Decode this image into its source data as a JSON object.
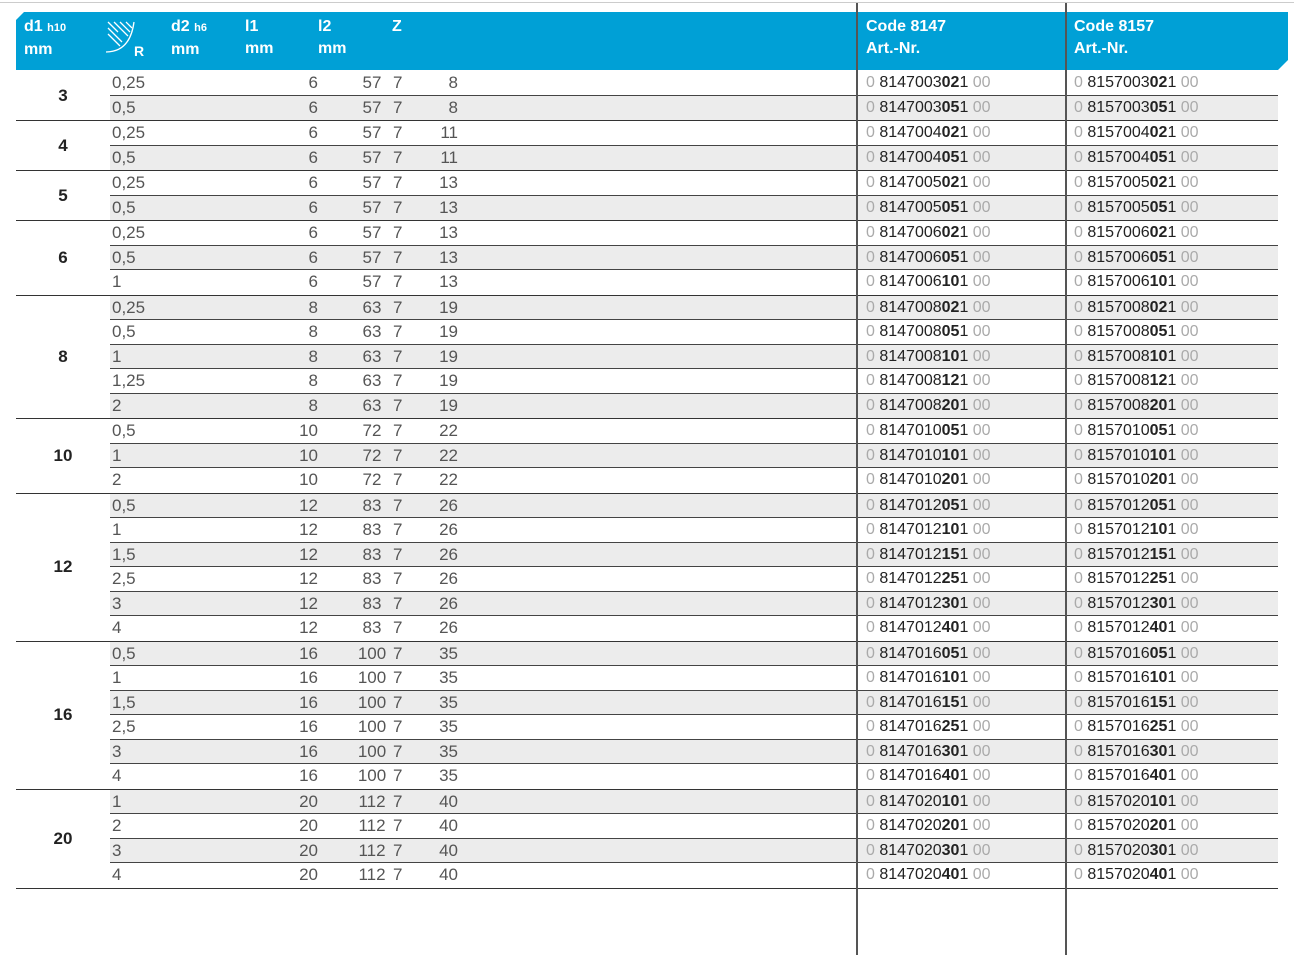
{
  "header": {
    "d1": "d1",
    "d1_tol": "h10",
    "d1_unit": "mm",
    "r": "R",
    "d2": "d2",
    "d2_tol": "h6",
    "d2_unit": "mm",
    "l1": "l1",
    "l1_unit": "mm",
    "l2": "l2",
    "l2_unit": "mm",
    "z": "Z",
    "code1": "Code 8147",
    "code1_sub": "Art.-Nr.",
    "code2": "Code 8157",
    "code2_sub": "Art.-Nr."
  },
  "colors": {
    "header_bg": "#00a0d6",
    "stripe": "#ececec"
  },
  "groups": [
    {
      "d1": "3",
      "rows": [
        [
          "0,25",
          "6",
          "57",
          "8",
          "7",
          "0814700302100",
          "0815700302100"
        ],
        [
          "0,5",
          "6",
          "57",
          "8",
          "7",
          "0814700305100",
          "0815700305100"
        ]
      ]
    },
    {
      "d1": "4",
      "rows": [
        [
          "0,25",
          "6",
          "57",
          "11",
          "7",
          "0814700402100",
          "0815700402100"
        ],
        [
          "0,5",
          "6",
          "57",
          "11",
          "7",
          "0814700405100",
          "0815700405100"
        ]
      ]
    },
    {
      "d1": "5",
      "rows": [
        [
          "0,25",
          "6",
          "57",
          "13",
          "7",
          "0814700502100",
          "0815700502100"
        ],
        [
          "0,5",
          "6",
          "57",
          "13",
          "7",
          "0814700505100",
          "0815700505100"
        ]
      ]
    },
    {
      "d1": "6",
      "rows": [
        [
          "0,25",
          "6",
          "57",
          "13",
          "7",
          "0814700602100",
          "0815700602100"
        ],
        [
          "0,5",
          "6",
          "57",
          "13",
          "7",
          "0814700605100",
          "0815700605100"
        ],
        [
          "1",
          "6",
          "57",
          "13",
          "7",
          "0814700610100",
          "0815700610100"
        ]
      ]
    },
    {
      "d1": "8",
      "rows": [
        [
          "0,25",
          "8",
          "63",
          "19",
          "7",
          "0814700802100",
          "0815700802100"
        ],
        [
          "0,5",
          "8",
          "63",
          "19",
          "7",
          "0814700805100",
          "0815700805100"
        ],
        [
          "1",
          "8",
          "63",
          "19",
          "7",
          "0814700810100",
          "0815700810100"
        ],
        [
          "1,25",
          "8",
          "63",
          "19",
          "7",
          "0814700812100",
          "0815700812100"
        ],
        [
          "2",
          "8",
          "63",
          "19",
          "7",
          "0814700820100",
          "0815700820100"
        ]
      ]
    },
    {
      "d1": "10",
      "rows": [
        [
          "0,5",
          "10",
          "72",
          "22",
          "7",
          "0814701005100",
          "0815701005100"
        ],
        [
          "1",
          "10",
          "72",
          "22",
          "7",
          "0814701010100",
          "0815701010100"
        ],
        [
          "2",
          "10",
          "72",
          "22",
          "7",
          "0814701020100",
          "0815701020100"
        ]
      ]
    },
    {
      "d1": "12",
      "rows": [
        [
          "0,5",
          "12",
          "83",
          "26",
          "7",
          "0814701205100",
          "0815701205100"
        ],
        [
          "1",
          "12",
          "83",
          "26",
          "7",
          "0814701210100",
          "0815701210100"
        ],
        [
          "1,5",
          "12",
          "83",
          "26",
          "7",
          "0814701215100",
          "0815701215100"
        ],
        [
          "2,5",
          "12",
          "83",
          "26",
          "7",
          "0814701225100",
          "0815701225100"
        ],
        [
          "3",
          "12",
          "83",
          "26",
          "7",
          "0814701230100",
          "0815701230100"
        ],
        [
          "4",
          "12",
          "83",
          "26",
          "7",
          "0814701240100",
          "0815701240100"
        ]
      ]
    },
    {
      "d1": "16",
      "rows": [
        [
          "0,5",
          "16",
          "100",
          "35",
          "7",
          "0814701605100",
          "0815701605100"
        ],
        [
          "1",
          "16",
          "100",
          "35",
          "7",
          "0814701610100",
          "0815701610100"
        ],
        [
          "1,5",
          "16",
          "100",
          "35",
          "7",
          "0814701615100",
          "0815701615100"
        ],
        [
          "2,5",
          "16",
          "100",
          "35",
          "7",
          "0814701625100",
          "0815701625100"
        ],
        [
          "3",
          "16",
          "100",
          "35",
          "7",
          "0814701630100",
          "0815701630100"
        ],
        [
          "4",
          "16",
          "100",
          "35",
          "7",
          "0814701640100",
          "0815701640100"
        ]
      ]
    },
    {
      "d1": "20",
      "rows": [
        [
          "1",
          "20",
          "112",
          "40",
          "7",
          "0814702010100",
          "0815702010100"
        ],
        [
          "2",
          "20",
          "112",
          "40",
          "7",
          "0814702020100",
          "0815702020100"
        ],
        [
          "3",
          "20",
          "112",
          "40",
          "7",
          "0814702030100",
          "0815702030100"
        ],
        [
          "4",
          "20",
          "112",
          "40",
          "7",
          "0814702040100",
          "0815702040100"
        ]
      ]
    }
  ]
}
